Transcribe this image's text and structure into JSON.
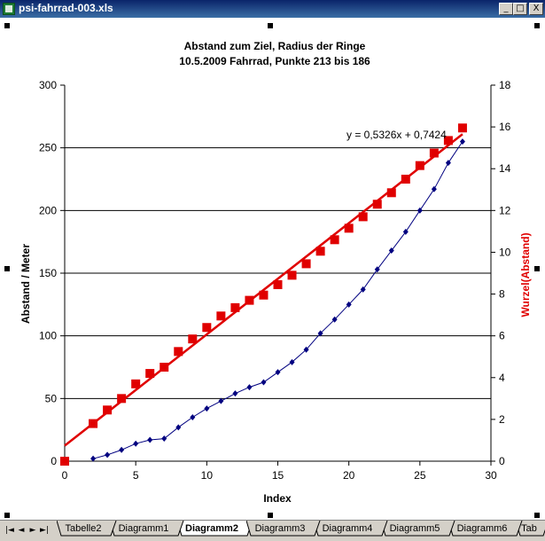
{
  "window": {
    "title": "psi-fahrrad-003.xls",
    "buttons": {
      "minimize": "_",
      "maximize": "□",
      "close": "X"
    }
  },
  "chart_data": {
    "type": "scatter",
    "title": "Abstand zum Ziel, Radius der Ringe",
    "subtitle": "10.5.2009 Fahrrad, Punkte 213 bis 186",
    "xlabel": "Index",
    "ylabel_left": "Abstand / Meter",
    "ylabel_right": "Wurzel(Abstand)",
    "xlim": [
      0,
      30
    ],
    "ylim_left": [
      0,
      300
    ],
    "ylim_right": [
      0,
      18
    ],
    "x_ticks": [
      0,
      5,
      10,
      15,
      20,
      25,
      30
    ],
    "y_left_ticks": [
      0,
      50,
      100,
      150,
      200,
      250,
      300
    ],
    "y_right_ticks": [
      0,
      2,
      4,
      6,
      8,
      10,
      12,
      14,
      16,
      18
    ],
    "gridlines": "horizontal",
    "trendline_label": "y = 0,5326x + 0,7424",
    "trendline": {
      "slope": 0.5326,
      "intercept": 0.7424,
      "x_range": [
        0,
        28
      ]
    },
    "series": [
      {
        "axis": "left",
        "color": "#000080",
        "marker": "diamond",
        "x": [
          2,
          3,
          4,
          5,
          6,
          7,
          8,
          9,
          10,
          11,
          12,
          13,
          14,
          15,
          16,
          17,
          18,
          19,
          20,
          21,
          22,
          23,
          24,
          25,
          26,
          27,
          28
        ],
        "y": [
          2,
          5,
          9,
          14,
          17,
          18,
          27,
          35,
          42,
          48,
          54,
          59,
          63,
          71,
          79,
          89,
          102,
          113,
          125,
          137,
          153,
          168,
          183,
          200,
          217,
          238,
          255
        ]
      },
      {
        "axis": "right",
        "color": "#e00000",
        "marker": "square",
        "x": [
          0,
          2,
          3,
          4,
          5,
          6,
          7,
          8,
          9,
          10,
          11,
          12,
          13,
          14,
          15,
          16,
          17,
          18,
          19,
          20,
          21,
          22,
          23,
          24,
          25,
          26,
          27,
          28
        ],
        "y": [
          0,
          1.8,
          2.45,
          3.0,
          3.7,
          4.2,
          4.5,
          5.25,
          5.85,
          6.4,
          6.95,
          7.35,
          7.7,
          7.95,
          8.45,
          8.9,
          9.45,
          10.05,
          10.6,
          11.15,
          11.7,
          12.3,
          12.85,
          13.5,
          14.15,
          14.75,
          15.35,
          15.95
        ]
      }
    ]
  },
  "sheet_tabs": [
    "Tabelle2",
    "Diagramm1",
    "Diagramm2",
    "Diagramm3",
    "Diagramm4",
    "Diagramm5",
    "Diagramm6",
    "Tab"
  ],
  "active_tab": "Diagramm2",
  "nav_buttons": [
    "|◄",
    "◄",
    "►",
    "►|"
  ]
}
